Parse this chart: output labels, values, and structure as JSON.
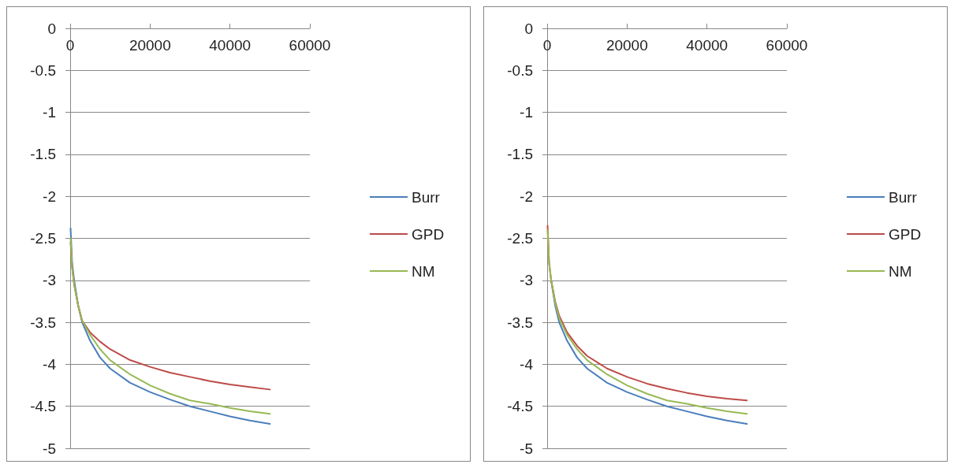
{
  "chart_data": [
    {
      "type": "line",
      "x": [
        100,
        500,
        1000,
        2000,
        3000,
        5000,
        7500,
        10000,
        15000,
        20000,
        25000,
        30000,
        35000,
        40000,
        45000,
        50000
      ],
      "xlim": [
        0,
        60000
      ],
      "xticks": [
        0,
        20000,
        40000,
        60000
      ],
      "ylim": [
        -5,
        0
      ],
      "yticks": [
        -5,
        -4.5,
        -4,
        -3.5,
        -3,
        -2.5,
        -2,
        -1.5,
        -1,
        -0.5,
        0
      ],
      "grid": "y",
      "legend": "right",
      "marker": "none",
      "line_style": "solid",
      "series": [
        {
          "name": "Burr",
          "color": "#4a7ebb",
          "values": [
            -2.38,
            -2.8,
            -3.0,
            -3.3,
            -3.5,
            -3.72,
            -3.92,
            -4.05,
            -4.22,
            -4.33,
            -4.42,
            -4.5,
            -4.56,
            -4.62,
            -4.67,
            -4.71
          ]
        },
        {
          "name": "GPD",
          "color": "#be4b48",
          "values": [
            -2.55,
            -2.85,
            -3.05,
            -3.3,
            -3.48,
            -3.62,
            -3.73,
            -3.82,
            -3.95,
            -4.03,
            -4.1,
            -4.15,
            -4.2,
            -4.24,
            -4.27,
            -4.3
          ]
        },
        {
          "name": "NM",
          "color": "#98b954",
          "values": [
            -2.5,
            -2.85,
            -3.05,
            -3.3,
            -3.48,
            -3.65,
            -3.82,
            -3.95,
            -4.12,
            -4.25,
            -4.35,
            -4.43,
            -4.47,
            -4.52,
            -4.56,
            -4.59
          ]
        }
      ]
    },
    {
      "type": "line",
      "x": [
        100,
        500,
        1000,
        2000,
        3000,
        5000,
        7500,
        10000,
        15000,
        20000,
        25000,
        30000,
        35000,
        40000,
        45000,
        50000
      ],
      "xlim": [
        0,
        60000
      ],
      "xticks": [
        0,
        20000,
        40000,
        60000
      ],
      "ylim": [
        -5,
        0
      ],
      "yticks": [
        -5,
        -4.5,
        -4,
        -3.5,
        -3,
        -2.5,
        -2,
        -1.5,
        -1,
        -0.5,
        0
      ],
      "grid": "y",
      "legend": "right",
      "marker": "none",
      "line_style": "solid",
      "series": [
        {
          "name": "Burr",
          "color": "#4a7ebb",
          "values": [
            null,
            null,
            -3.0,
            -3.3,
            -3.5,
            -3.72,
            -3.92,
            -4.05,
            -4.22,
            -4.33,
            -4.42,
            -4.5,
            -4.56,
            -4.62,
            -4.67,
            -4.71
          ]
        },
        {
          "name": "GPD",
          "color": "#be4b48",
          "values": [
            -2.35,
            -2.8,
            -3.0,
            -3.25,
            -3.42,
            -3.62,
            -3.78,
            -3.9,
            -4.05,
            -4.15,
            -4.23,
            -4.29,
            -4.34,
            -4.38,
            -4.41,
            -4.43
          ]
        },
        {
          "name": "NM",
          "color": "#98b954",
          "values": [
            -2.4,
            -2.8,
            -3.0,
            -3.27,
            -3.45,
            -3.65,
            -3.82,
            -3.95,
            -4.12,
            -4.25,
            -4.35,
            -4.43,
            -4.47,
            -4.52,
            -4.56,
            -4.59
          ]
        }
      ]
    }
  ]
}
